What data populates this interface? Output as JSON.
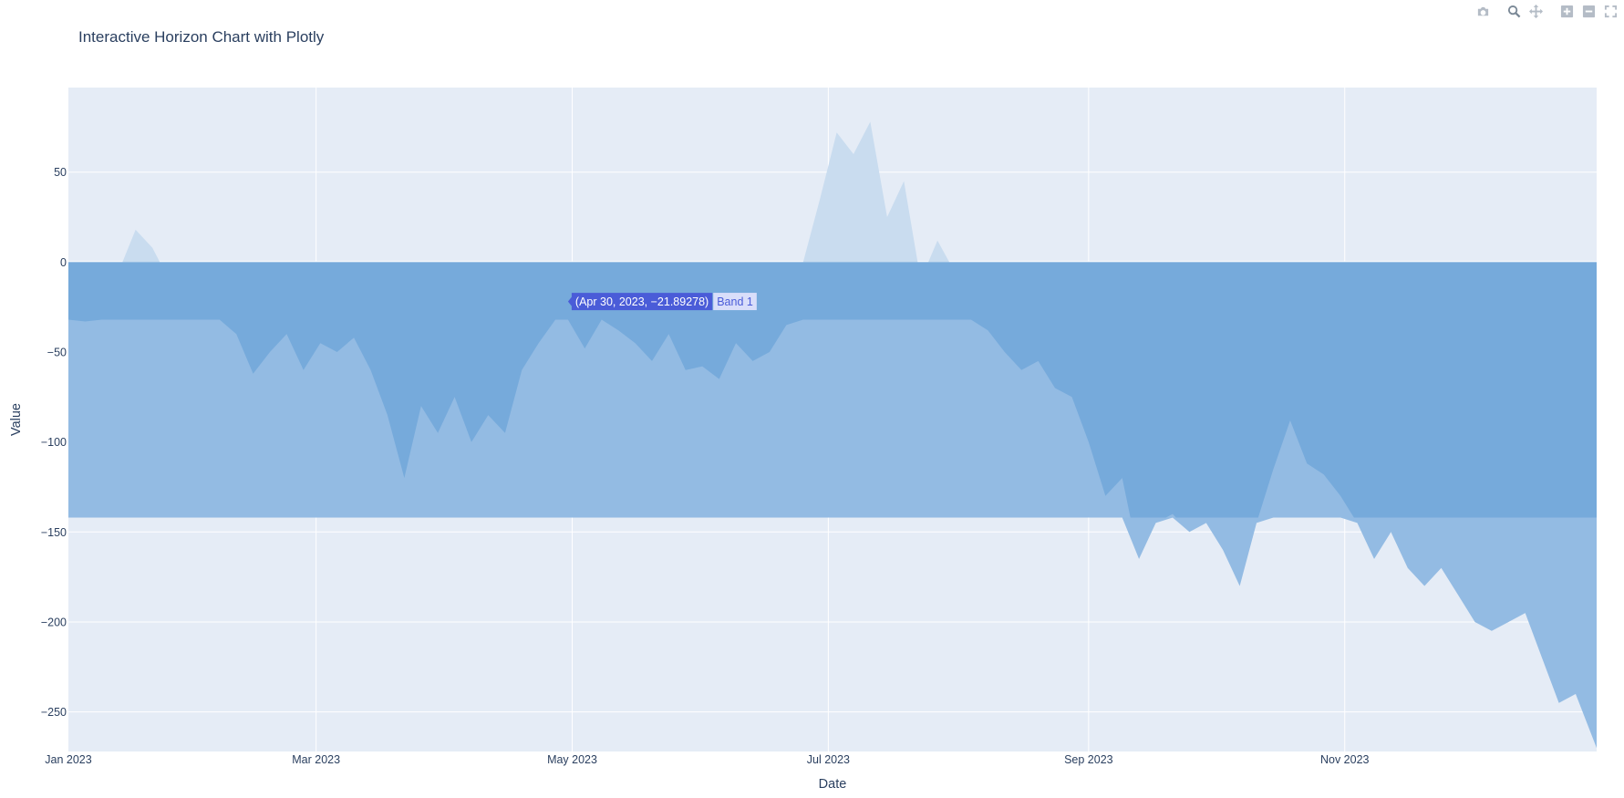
{
  "chart_data": {
    "type": "area",
    "title": "Interactive Horizon Chart with Plotly",
    "xlabel": "Date",
    "ylabel": "Value",
    "xlim": [
      "2023-01-01",
      "2023-12-31"
    ],
    "ylim": [
      -272,
      97
    ],
    "x_tick_dates": [
      "2023-01-01",
      "2023-03-01",
      "2023-05-01",
      "2023-07-01",
      "2023-09-01",
      "2023-11-01"
    ],
    "x_tick_labels": [
      "Jan 2023",
      "Mar 2023",
      "May 2023",
      "Jul 2023",
      "Sep 2023",
      "Nov 2023"
    ],
    "y_ticks": [
      50,
      0,
      -50,
      -100,
      -150,
      -200,
      -250
    ],
    "y_tick_labels": [
      "50",
      "0",
      "−50",
      "−100",
      "−150",
      "−200",
      "−250"
    ],
    "grid": true,
    "band_boundaries": [
      0,
      -32,
      -142,
      -272
    ],
    "series": [
      {
        "name": "Band 1",
        "x": [
          "2023-01-01",
          "2023-01-05",
          "2023-01-09",
          "2023-01-13",
          "2023-01-17",
          "2023-01-21",
          "2023-01-25",
          "2023-01-29",
          "2023-02-02",
          "2023-02-06",
          "2023-02-10",
          "2023-02-14",
          "2023-02-18",
          "2023-02-22",
          "2023-02-26",
          "2023-03-02",
          "2023-03-06",
          "2023-03-10",
          "2023-03-14",
          "2023-03-18",
          "2023-03-22",
          "2023-03-26",
          "2023-03-30",
          "2023-04-03",
          "2023-04-07",
          "2023-04-11",
          "2023-04-15",
          "2023-04-19",
          "2023-04-23",
          "2023-04-27",
          "2023-04-30",
          "2023-05-04",
          "2023-05-08",
          "2023-05-12",
          "2023-05-16",
          "2023-05-20",
          "2023-05-24",
          "2023-05-28",
          "2023-06-01",
          "2023-06-05",
          "2023-06-09",
          "2023-06-13",
          "2023-06-17",
          "2023-06-21",
          "2023-06-25",
          "2023-06-29",
          "2023-07-03",
          "2023-07-07",
          "2023-07-11",
          "2023-07-15",
          "2023-07-19",
          "2023-07-23",
          "2023-07-27",
          "2023-07-31",
          "2023-08-04",
          "2023-08-08",
          "2023-08-12",
          "2023-08-16",
          "2023-08-20",
          "2023-08-24",
          "2023-08-28",
          "2023-09-01",
          "2023-09-05",
          "2023-09-09",
          "2023-09-13",
          "2023-09-17",
          "2023-09-21",
          "2023-09-25",
          "2023-09-29",
          "2023-10-03",
          "2023-10-07",
          "2023-10-11",
          "2023-10-15",
          "2023-10-19",
          "2023-10-23",
          "2023-10-27",
          "2023-10-31",
          "2023-11-04",
          "2023-11-08",
          "2023-11-12",
          "2023-11-16",
          "2023-11-20",
          "2023-11-24",
          "2023-11-28",
          "2023-12-02",
          "2023-12-06",
          "2023-12-10",
          "2023-12-14",
          "2023-12-18",
          "2023-12-22",
          "2023-12-26",
          "2023-12-31"
        ],
        "values": [
          -18,
          -33,
          -22,
          -5,
          18,
          8,
          -10,
          -32,
          -5,
          -12,
          -40,
          -62,
          -50,
          -40,
          -60,
          -45,
          -50,
          -42,
          -60,
          -85,
          -120,
          -80,
          -95,
          -75,
          -100,
          -85,
          -95,
          -60,
          -45,
          -22,
          -21.89,
          -48,
          -30,
          -38,
          -45,
          -55,
          -40,
          -60,
          -58,
          -65,
          -45,
          -55,
          -50,
          -35,
          0,
          35,
          72,
          60,
          78,
          25,
          45,
          -10,
          12,
          -5,
          -25,
          -38,
          -50,
          -60,
          -55,
          -70,
          -75,
          -100,
          -130,
          -120,
          -165,
          -145,
          -140,
          -150,
          -145,
          -160,
          -180,
          -145,
          -115,
          -88,
          -112,
          -118,
          -130,
          -145,
          -165,
          -150,
          -170,
          -180,
          -170,
          -185,
          -200,
          -205,
          -200,
          -195,
          -220,
          -245,
          -240,
          -270
        ]
      }
    ],
    "tooltip": {
      "label": "(Apr 30, 2023, −21.89278)",
      "series": "Band 1"
    }
  },
  "colors": {
    "plot_bg": "#e5ecf6",
    "grid": "#ffffff",
    "band_light": "#c9dcef",
    "band_mid": "#93bbe3",
    "band_dark": "#76aadb",
    "tooltip_bg": "#4a5cd8",
    "tooltip_name_bg": "#d9defa"
  },
  "modebar": {
    "icons": [
      "camera-icon",
      "zoom-icon",
      "pan-icon",
      "zoom-in-icon",
      "zoom-out-icon",
      "autoscale-icon"
    ]
  }
}
